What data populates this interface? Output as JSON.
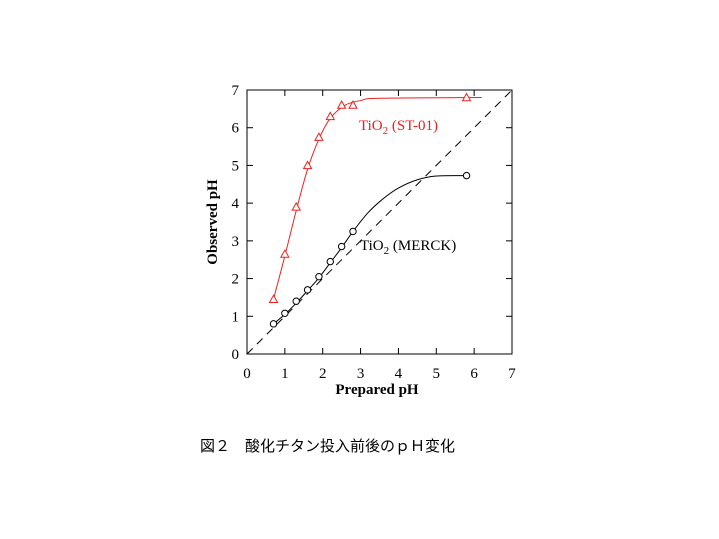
{
  "caption": "図２　酸化チタン投入前後のｐＨ変化",
  "chart_data": {
    "type": "scatter",
    "title": "",
    "xlabel": "Prepared pH",
    "ylabel": "Observed pH",
    "xlim": [
      0,
      7
    ],
    "ylim": [
      0,
      7
    ],
    "xticks": [
      "0",
      "1",
      "2",
      "3",
      "4",
      "5",
      "6",
      "7"
    ],
    "yticks": [
      "0",
      "1",
      "2",
      "3",
      "4",
      "5",
      "6",
      "7"
    ],
    "grid": false,
    "reference_line": {
      "style": "dashed",
      "color": "#000000",
      "x": [
        0,
        7
      ],
      "y": [
        0,
        7
      ]
    },
    "series": [
      {
        "label_main": "TiO",
        "label_sub": "2",
        "label_rest": " (ST-01)",
        "color": "#e8221e",
        "marker": "triangle",
        "points": [
          [
            0.7,
            1.45
          ],
          [
            1.0,
            2.65
          ],
          [
            1.3,
            3.9
          ],
          [
            1.6,
            5.0
          ],
          [
            1.9,
            5.75
          ],
          [
            2.2,
            6.3
          ],
          [
            2.5,
            6.6
          ],
          [
            2.8,
            6.6
          ],
          [
            5.8,
            6.8
          ]
        ],
        "fit": [
          [
            0.7,
            1.45
          ],
          [
            1.0,
            2.6
          ],
          [
            1.3,
            3.8
          ],
          [
            1.6,
            4.9
          ],
          [
            1.9,
            5.7
          ],
          [
            2.2,
            6.25
          ],
          [
            2.6,
            6.6
          ],
          [
            3.0,
            6.72
          ],
          [
            3.5,
            6.78
          ],
          [
            6.2,
            6.8
          ]
        ]
      },
      {
        "label_main": "TiO",
        "label_sub": "2",
        "label_rest": " (MERCK)",
        "color": "#000000",
        "marker": "circle",
        "points": [
          [
            0.7,
            0.8
          ],
          [
            1.0,
            1.08
          ],
          [
            1.3,
            1.4
          ],
          [
            1.6,
            1.7
          ],
          [
            1.9,
            2.05
          ],
          [
            2.2,
            2.45
          ],
          [
            2.5,
            2.85
          ],
          [
            2.8,
            3.25
          ],
          [
            5.8,
            4.73
          ]
        ],
        "fit": [
          [
            0.7,
            0.8
          ],
          [
            1.0,
            1.05
          ],
          [
            1.3,
            1.35
          ],
          [
            1.6,
            1.68
          ],
          [
            1.9,
            2.02
          ],
          [
            2.2,
            2.42
          ],
          [
            2.5,
            2.82
          ],
          [
            2.8,
            3.25
          ],
          [
            3.2,
            3.75
          ],
          [
            3.6,
            4.12
          ],
          [
            4.0,
            4.4
          ],
          [
            4.5,
            4.62
          ],
          [
            5.0,
            4.72
          ],
          [
            5.8,
            4.73
          ]
        ]
      }
    ]
  }
}
